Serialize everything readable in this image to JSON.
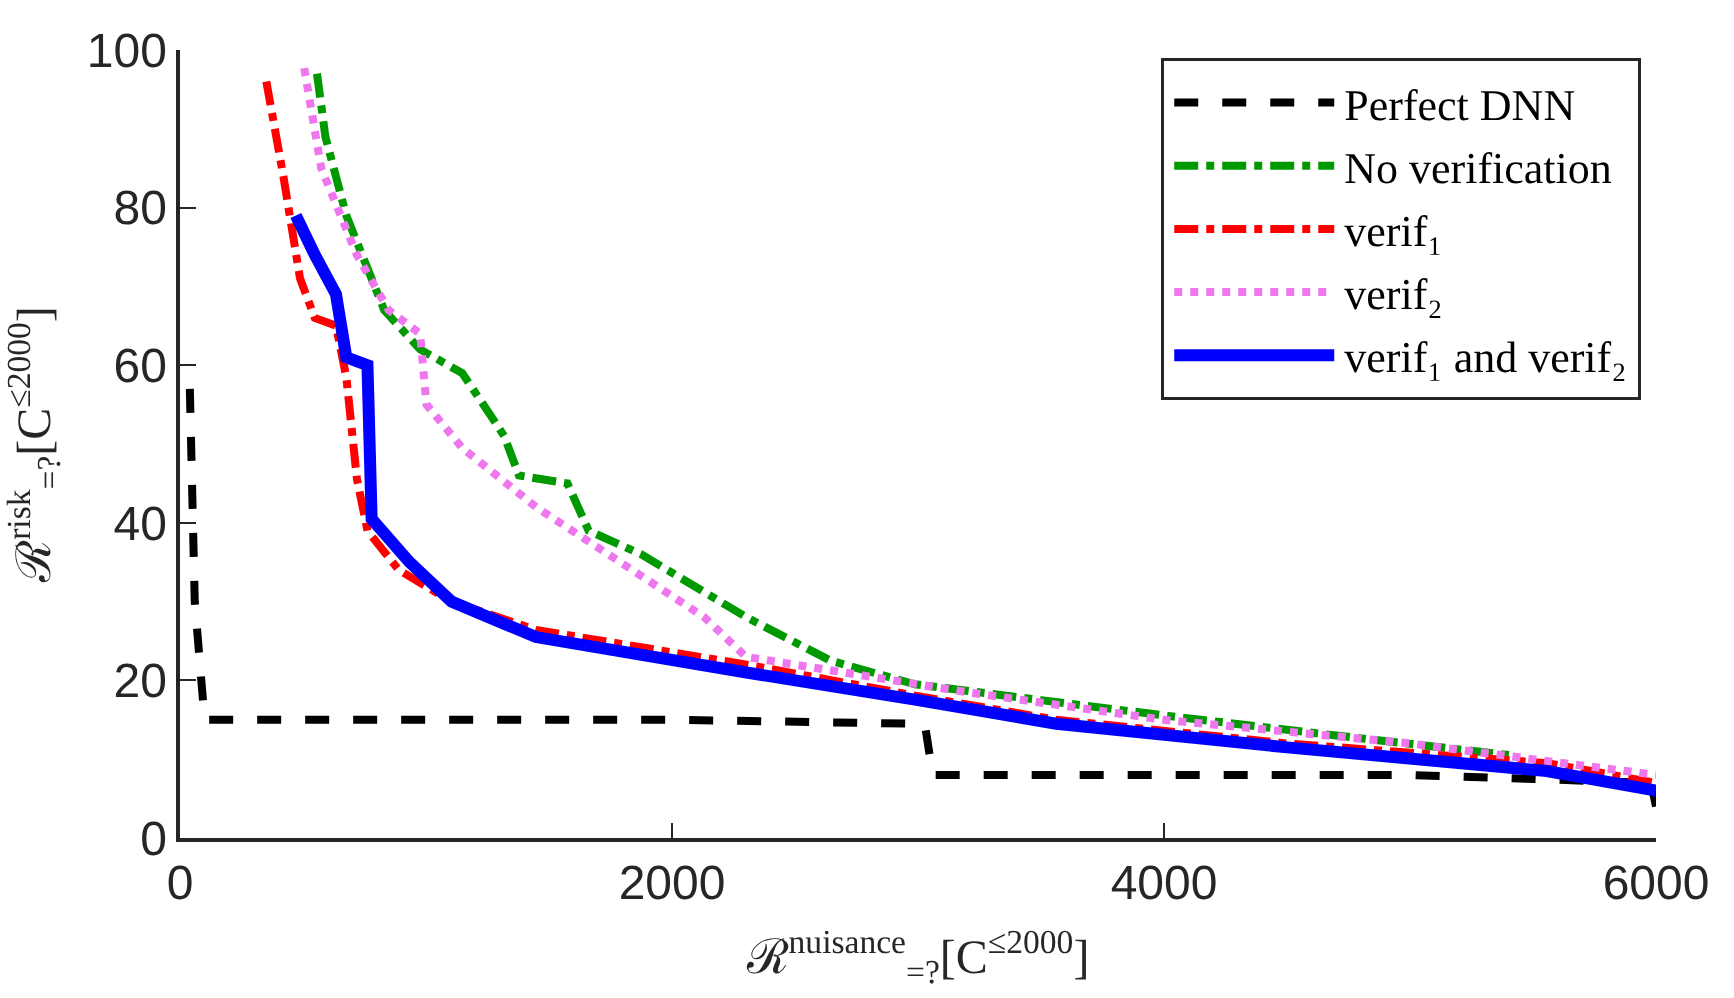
{
  "chart_data": {
    "type": "line",
    "xlabel": "ℛ$^{nuisance}$$_{=?}$[C$^{≤2000}$]",
    "ylabel": "ℛ$^{risk}$$_{=?}$[C$^{≤2000}$]",
    "xlim": [
      0,
      6000
    ],
    "xticks": [
      0,
      2000,
      4000,
      6000
    ],
    "ylim": [
      0,
      100
    ],
    "yticks": [
      0,
      20,
      40,
      60,
      80,
      100
    ],
    "legend": "top right",
    "marker": "none",
    "series": [
      {
        "name": "Perfect DNN",
        "color": "#000000",
        "line_style": "dashed",
        "x": [
          40,
          60,
          100,
          1000,
          2000,
          3000,
          3030,
          3060,
          4000,
          5000,
          5980,
          6000
        ],
        "values": [
          57,
          30,
          15,
          15,
          15,
          14.5,
          14,
          8,
          8,
          8,
          7,
          4
        ]
      },
      {
        "name": "No verification",
        "color": "#009900",
        "line_style": "dashdot",
        "x": [
          557,
          591,
          676,
          830,
          976,
          1147,
          1276,
          1318,
          1378,
          1575,
          1661,
          1875,
          2303,
          2645,
          2988,
          3500,
          4015,
          4700,
          5411
        ],
        "values": [
          97,
          89,
          79,
          67,
          62,
          59,
          53,
          51,
          46,
          45,
          39,
          36,
          28,
          22.5,
          19.5,
          17.5,
          15.5,
          13,
          10.5
        ]
      },
      {
        "name": "verif₁",
        "color": "#ff0000",
        "line_style": "dashdot",
        "x": [
          351,
          420,
          488,
          548,
          634,
          676,
          719,
          762,
          890,
          1104,
          1447,
          2303,
          3000,
          3562,
          4500,
          5556,
          6000
        ],
        "values": [
          96,
          84,
          71,
          66,
          65,
          58.5,
          45.6,
          39,
          34,
          30,
          26.4,
          22,
          18,
          15,
          12,
          9.5,
          7
        ]
      },
      {
        "name": "verif₂",
        "color": "#ee77ee",
        "line_style": "dotted",
        "x": [
          505,
          574,
          719,
          848,
          976,
          1002,
          1147,
          1447,
          1790,
          2132,
          2300,
          2700,
          3200,
          4000,
          5000,
          6000
        ],
        "values": [
          97.7,
          85,
          74,
          67,
          64,
          55,
          49.5,
          42,
          35,
          28,
          23,
          21,
          18.5,
          15,
          12,
          8
        ]
      },
      {
        "name": "verif₁ and verif₂",
        "color": "#0000ff",
        "line_style": "solid",
        "x": [
          471,
          548,
          634,
          676,
          762,
          779,
          933,
          1104,
          1447,
          2303,
          3000,
          3562,
          4500,
          5556,
          6000
        ],
        "values": [
          79,
          74,
          69,
          61,
          60,
          40.5,
          35,
          30,
          25.5,
          21,
          17.5,
          14.5,
          11.5,
          8.5,
          6
        ]
      }
    ]
  }
}
